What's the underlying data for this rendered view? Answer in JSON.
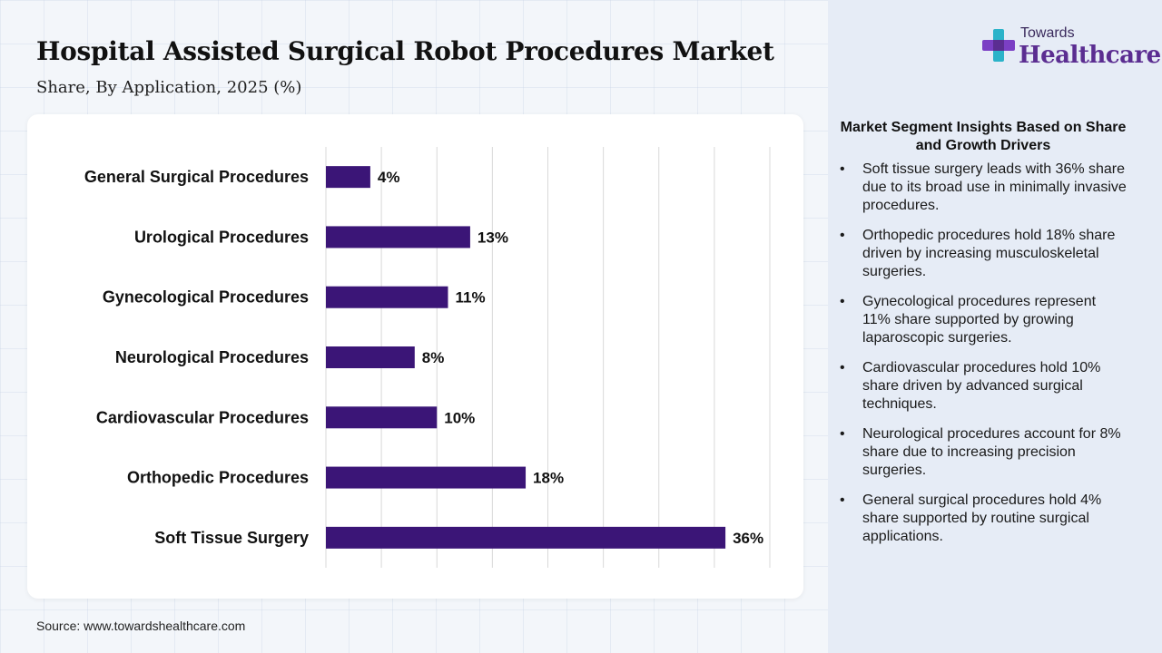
{
  "header": {
    "title": "Hospital Assisted Surgical Robot Procedures Market",
    "subtitle": "Share, By Application, 2025 (%)"
  },
  "logo": {
    "top_text": "Towards",
    "main_text": "Healthcare",
    "icon": "cross-logo-icon"
  },
  "chart_data": {
    "type": "bar",
    "orientation": "horizontal",
    "categories": [
      "General Surgical Procedures",
      "Urological Procedures",
      "Gynecological Procedures",
      "Neurological Procedures",
      "Cardiovascular Procedures",
      "Orthopedic Procedures",
      "Soft Tissue Surgery"
    ],
    "values": [
      4,
      13,
      11,
      8,
      10,
      18,
      36
    ],
    "value_labels": [
      "4%",
      "13%",
      "11%",
      "8%",
      "10%",
      "18%",
      "36%"
    ],
    "xlim": [
      0,
      40
    ],
    "grid": true,
    "bar_color": "#3b1577"
  },
  "insights": {
    "title": "Market Segment Insights Based on Share and Growth Drivers",
    "items": [
      "Soft tissue surgery leads with 36% share due to its broad use in minimally invasive procedures.",
      "Orthopedic procedures hold 18% share driven by increasing musculoskeletal surgeries.",
      "Gynecological procedures represent 11% share supported by growing laparoscopic surgeries.",
      "Cardiovascular procedures hold 10% share driven by advanced surgical techniques.",
      "Neurological procedures account for 8% share due to increasing precision surgeries.",
      "General surgical procedures hold 4% share supported by routine surgical applications."
    ]
  },
  "footer": {
    "source": "Source: www.towardshealthcare.com"
  }
}
